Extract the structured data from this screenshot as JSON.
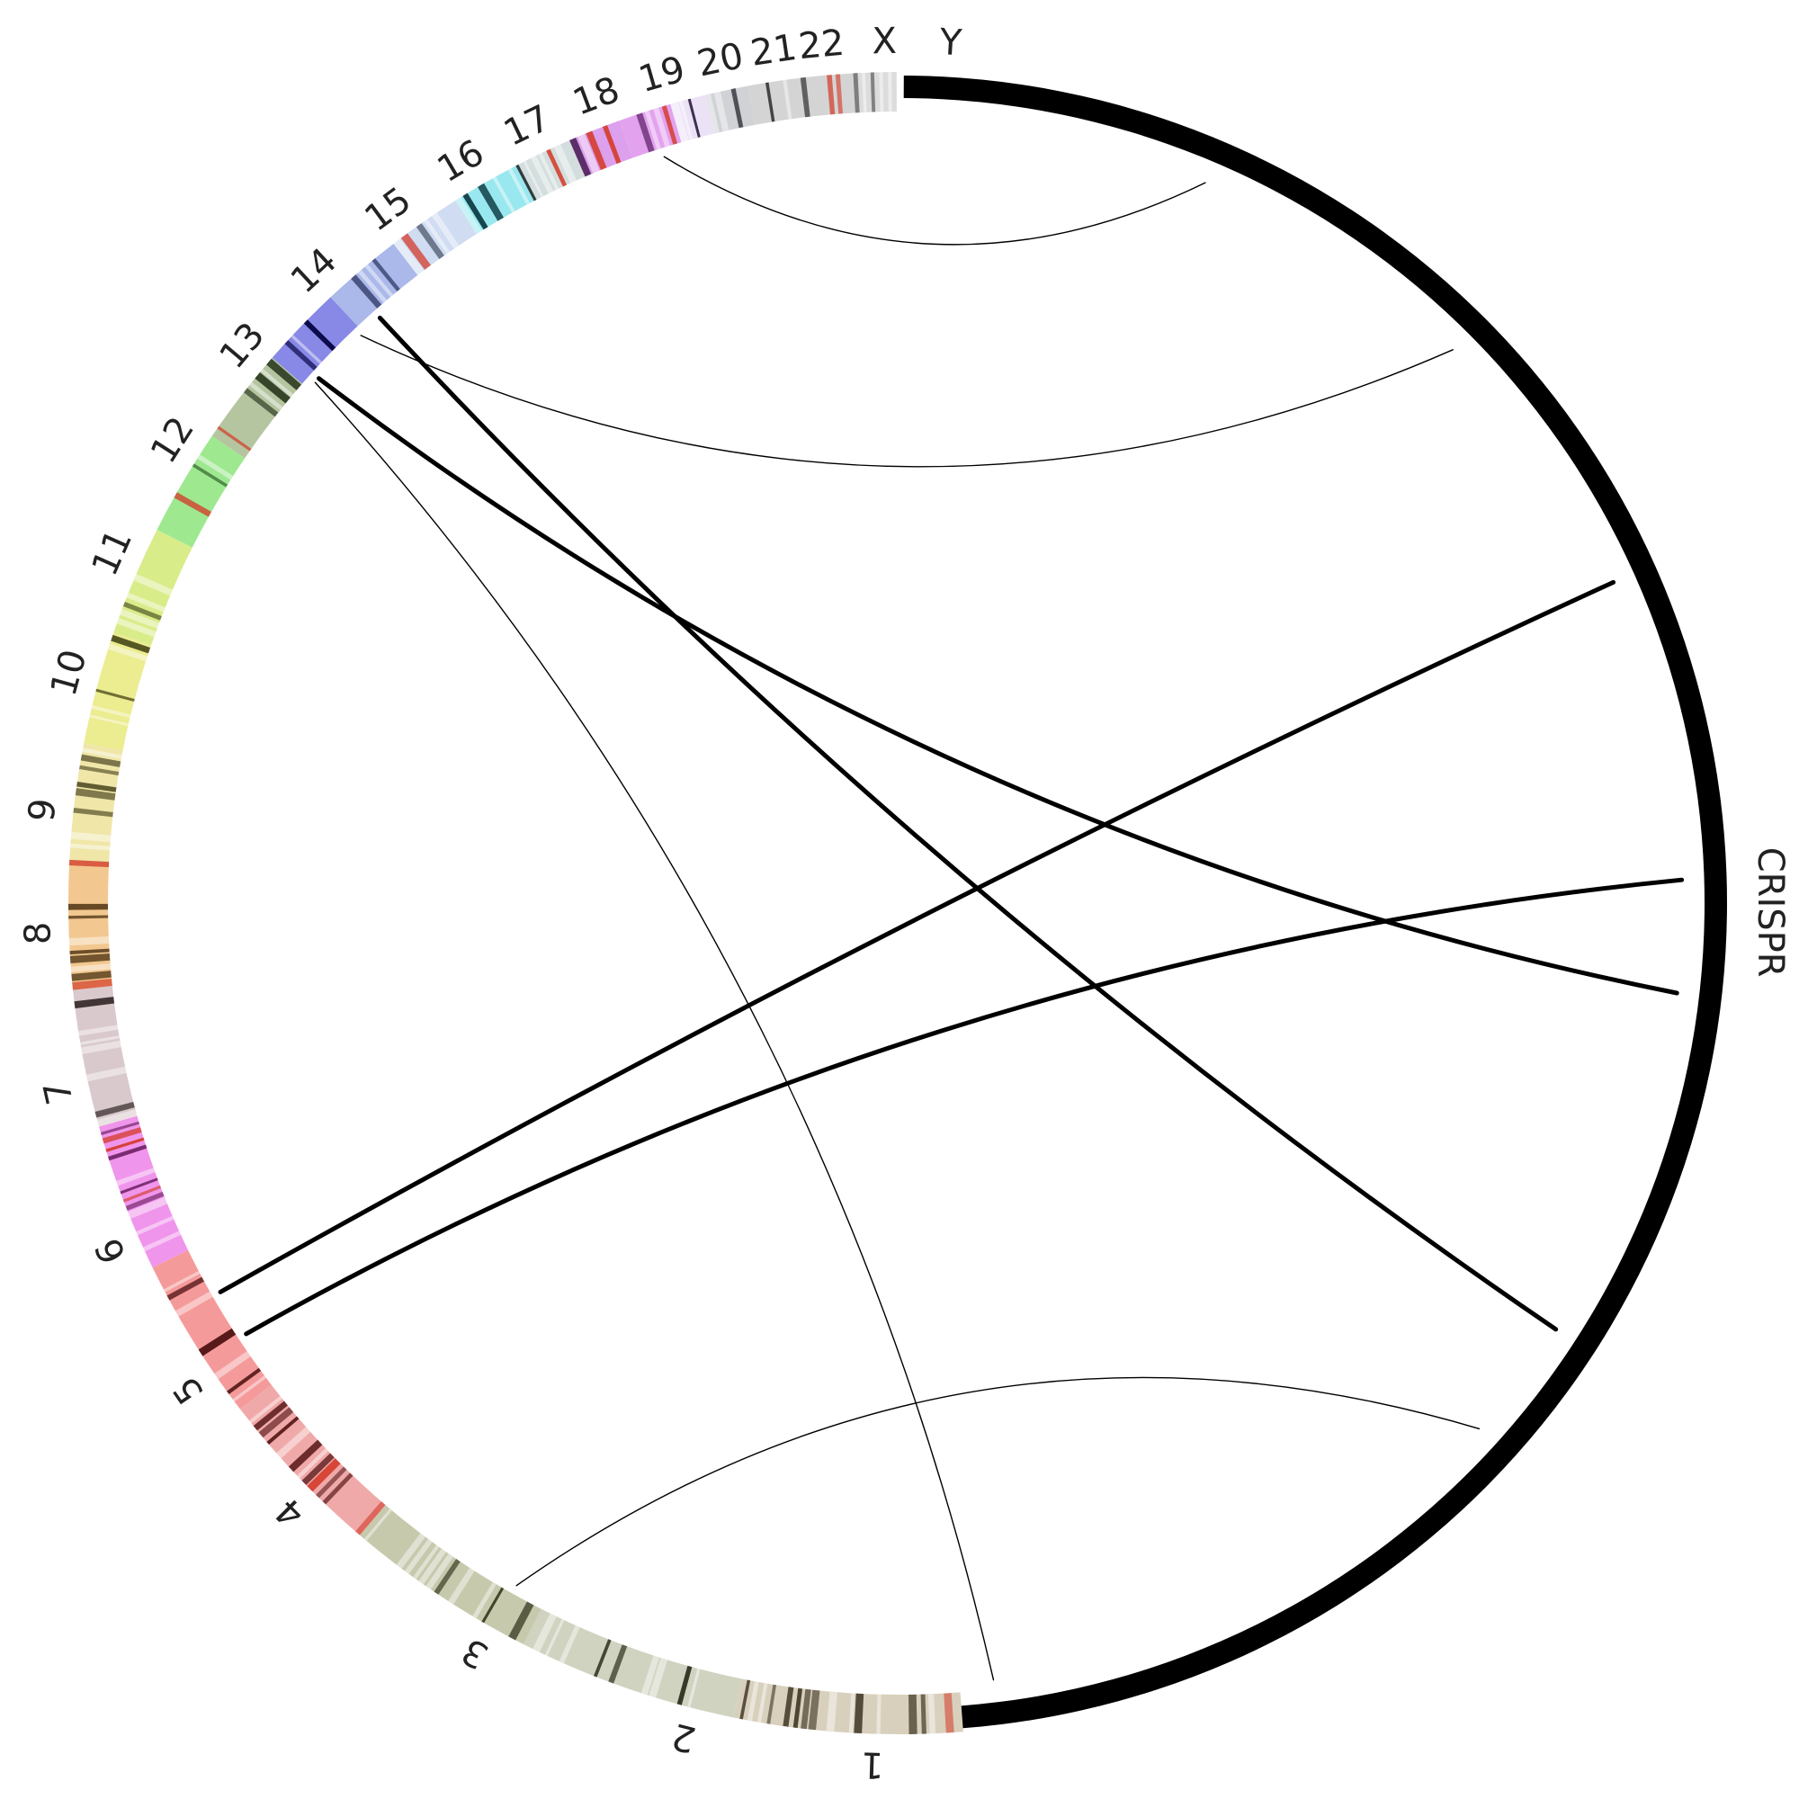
{
  "diagram": {
    "segments": [
      {
        "label": "1",
        "color": "#d8d0bc",
        "dark": "#3a3020",
        "thick": false
      },
      {
        "label": "2",
        "color": "#d0d3bf",
        "dark": "#2c3222",
        "thick": false
      },
      {
        "label": "3",
        "color": "#c7c9ad",
        "dark": "#35361f",
        "thick": false
      },
      {
        "label": "4",
        "color": "#f0a9a9",
        "dark": "#5a1a1a",
        "thick": false
      },
      {
        "label": "5",
        "color": "#f59a9a",
        "dark": "#4a0f0f",
        "thick": false
      },
      {
        "label": "6",
        "color": "#f095ec",
        "dark": "#5a0f50",
        "thick": false
      },
      {
        "label": "7",
        "color": "#d9c9cc",
        "dark": "#3b3030",
        "thick": false
      },
      {
        "label": "8",
        "color": "#f2c890",
        "dark": "#4a3010",
        "thick": false
      },
      {
        "label": "9",
        "color": "#efe6a8",
        "dark": "#3a3512",
        "thick": false
      },
      {
        "label": "10",
        "color": "#ecec90",
        "dark": "#3d3d10",
        "thick": false
      },
      {
        "label": "11",
        "color": "#d9ec8a",
        "dark": "#333d10",
        "thick": false
      },
      {
        "label": "12",
        "color": "#9ee890",
        "dark": "#1c4a16",
        "thick": false
      },
      {
        "label": "13",
        "color": "#b5c5a0",
        "dark": "#223018",
        "thick": false
      },
      {
        "label": "14",
        "color": "#8888e6",
        "dark": "#0a0a4a",
        "thick": false
      },
      {
        "label": "15",
        "color": "#aab8ea",
        "dark": "#202a55",
        "thick": false
      },
      {
        "label": "16",
        "color": "#cfdcf2",
        "dark": "#2a3345",
        "thick": false
      },
      {
        "label": "17",
        "color": "#9ae8ef",
        "dark": "#124048",
        "thick": false
      },
      {
        "label": "18",
        "color": "#d4dede",
        "dark": "#2a3535",
        "thick": false
      },
      {
        "label": "19",
        "color": "#dca0ec",
        "dark": "#4a1e55",
        "thick": false
      },
      {
        "label": "20",
        "color": "#e3a2ee",
        "dark": "#4d1458",
        "thick": false
      },
      {
        "label": "21",
        "color": "#ece2f6",
        "dark": "#3d2d50",
        "thick": false
      },
      {
        "label": "22",
        "color": "#d0d2d6",
        "dark": "#30343a",
        "thick": false
      },
      {
        "label": "X",
        "color": "#d4d4d4",
        "dark": "#222222",
        "thick": false
      },
      {
        "label": "Y",
        "color": "#dcdcdc",
        "dark": "#444444",
        "thick": false
      },
      {
        "label": "CRISPR",
        "color": "#000000",
        "dark": "#000000",
        "thick": true
      }
    ],
    "links": [
      {
        "from": "18",
        "to": "CRISPR",
        "weight": "thin"
      },
      {
        "from": "14",
        "to": "CRISPR",
        "weight": "thin"
      },
      {
        "from": "13",
        "to": "1",
        "weight": "thin"
      },
      {
        "from": "3",
        "to": "CRISPR",
        "weight": "thin"
      },
      {
        "from": "14",
        "to": "CRISPR",
        "weight": "thick"
      },
      {
        "from": "13",
        "to": "CRISPR",
        "weight": "thick"
      },
      {
        "from": "5",
        "to": "CRISPR",
        "weight": "thick"
      },
      {
        "from": "5",
        "to": "CRISPR",
        "weight": "thick"
      }
    ]
  }
}
